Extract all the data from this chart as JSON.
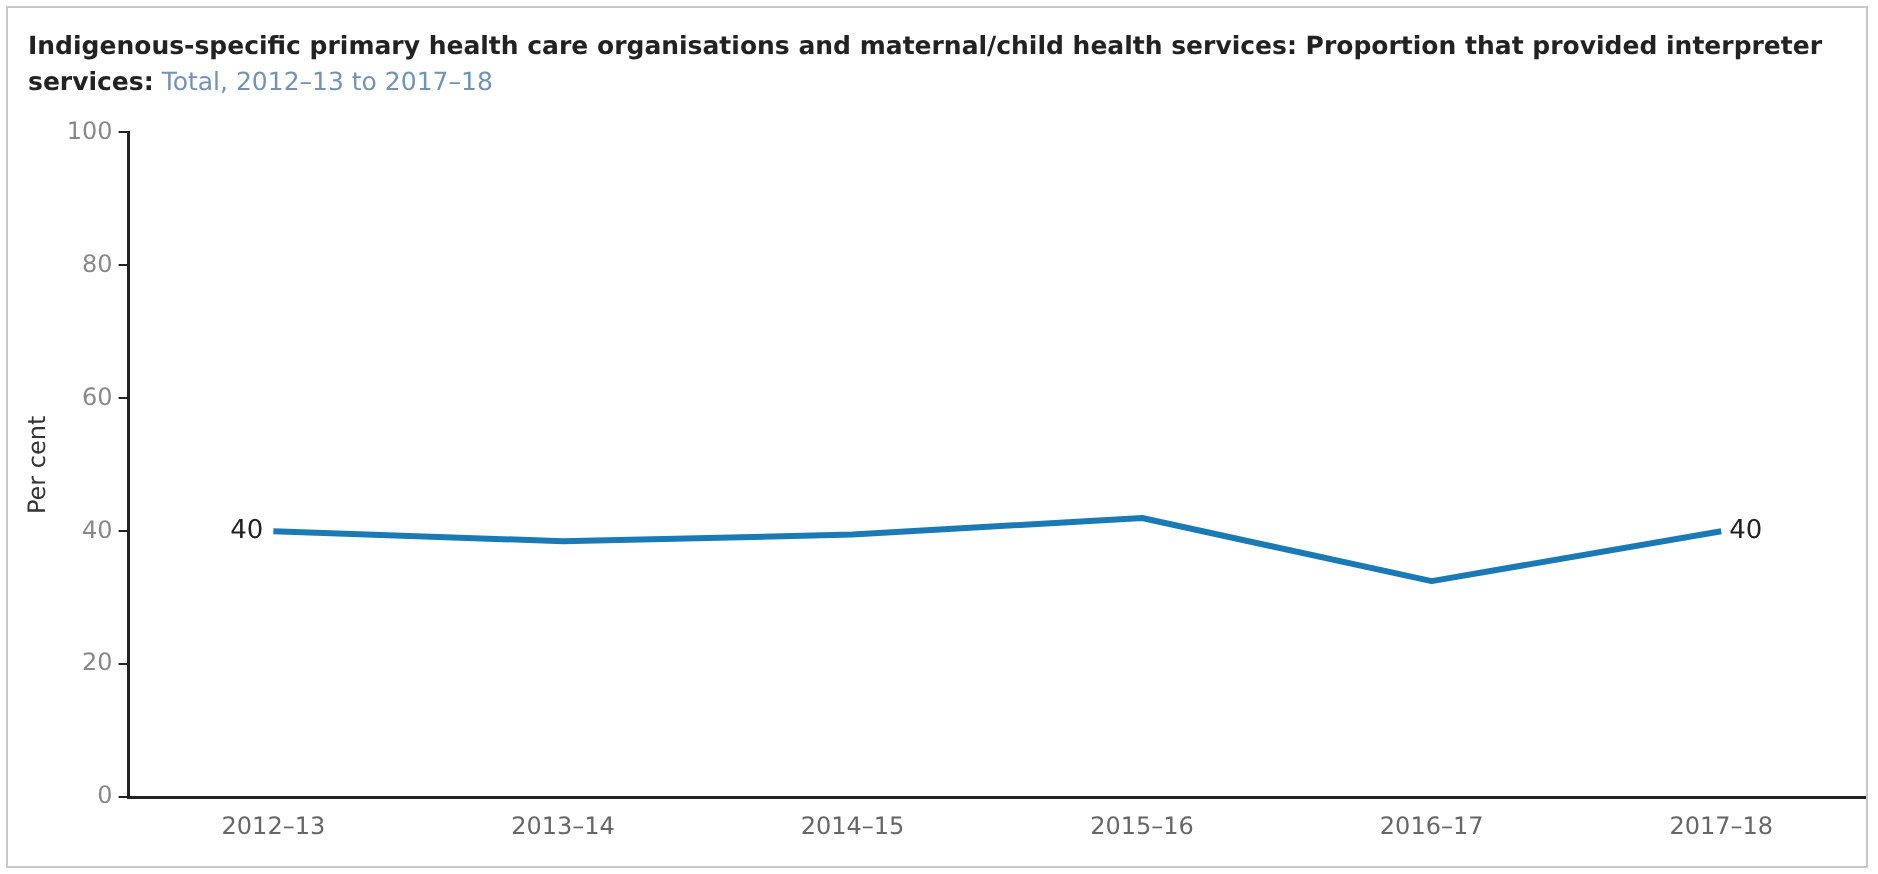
{
  "chart_data": {
    "type": "line",
    "title": "Indigenous-specific primary health care organisations and maternal/child health services: Proportion that provided interpreter services:",
    "subtitle": "Total, 2012–13 to 2017–18",
    "ylabel": "Per cent",
    "categories": [
      "2012–13",
      "2013–14",
      "2014–15",
      "2015–16",
      "2016–17",
      "2017–18"
    ],
    "series": [
      {
        "color": "#1a7ab5",
        "values": [
          40,
          38.5,
          39.5,
          42,
          32.5,
          40
        ],
        "value_labels": [
          "40",
          null,
          null,
          null,
          null,
          "40"
        ]
      }
    ],
    "ylim": [
      0,
      100
    ],
    "yticks": [
      0,
      20,
      40,
      60,
      80,
      100
    ],
    "grid": false,
    "legend": false,
    "marker": "none",
    "line_style": "solid"
  }
}
